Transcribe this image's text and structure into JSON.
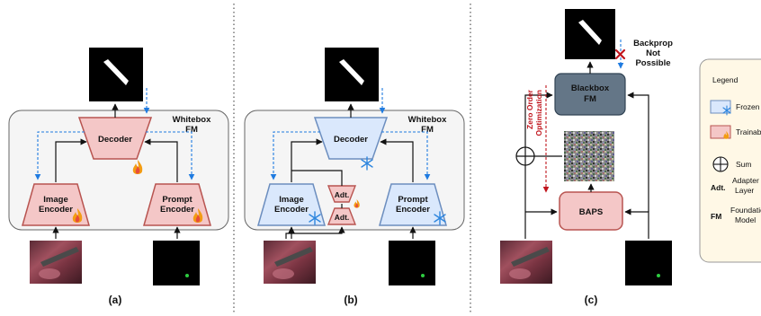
{
  "panel_a": {
    "container_label_1": "Whitebox",
    "container_label_2": "FM",
    "decoder": "Decoder",
    "image_encoder_1": "Image",
    "image_encoder_2": "Encoder",
    "prompt_encoder_1": "Prompt",
    "prompt_encoder_2": "Encoder",
    "caption": "(a)"
  },
  "panel_b": {
    "container_label_1": "Whitebox",
    "container_label_2": "FM",
    "decoder": "Decoder",
    "image_encoder_1": "Image",
    "image_encoder_2": "Encoder",
    "prompt_encoder_1": "Prompt",
    "prompt_encoder_2": "Encoder",
    "adapter_top": "Adt.",
    "adapter_bottom": "Adt.",
    "caption": "(b)"
  },
  "panel_c": {
    "blackbox_1": "Blackbox",
    "blackbox_2": "FM",
    "baps": "BAPS",
    "zero_order_1": "Zero Order",
    "zero_order_2": "Optimization",
    "backprop_1": "Backprop",
    "backprop_2": "Not",
    "backprop_3": "Possible",
    "caption": "(c)"
  },
  "legend": {
    "title": "Legend",
    "frozen": "Frozen",
    "trainable": "Trainab",
    "sum": "Sum",
    "adt_key": "Adt.",
    "adt_val_1": "Adapter",
    "adt_val_2": "Layer",
    "fm_key": "FM",
    "fm_val_1": "Foundatio",
    "fm_val_2": "Model"
  },
  "colors": {
    "trainable_fill": "#f4c7c7",
    "trainable_stroke": "#b85450",
    "frozen_fill": "#dae8fc",
    "frozen_stroke": "#6c8ebf",
    "blackbox_fill": "#647687",
    "container_fill": "#f5f5f5",
    "legend_fill": "#fff8e6",
    "gradient_arrow": "#1f7be0",
    "zero_order": "#c0141c"
  }
}
